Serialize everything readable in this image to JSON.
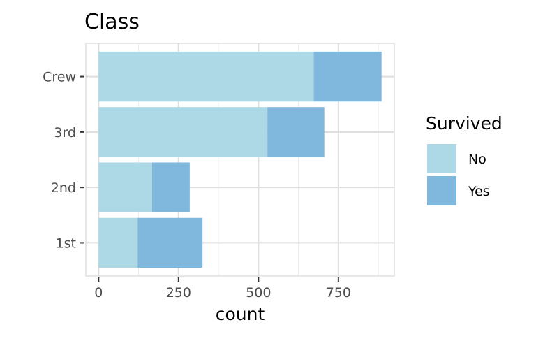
{
  "chart_data": {
    "type": "bar",
    "orientation": "horizontal",
    "stacked": true,
    "title": "Class",
    "xlabel": "count",
    "ylabel": "",
    "categories": [
      "1st",
      "2nd",
      "3rd",
      "Crew"
    ],
    "series": [
      {
        "name": "No",
        "color": "#add8e6",
        "values": [
          122,
          167,
          528,
          673
        ]
      },
      {
        "name": "Yes",
        "color": "#7fb8dc",
        "values": [
          203,
          118,
          178,
          212
        ]
      }
    ],
    "xlim": [
      -40,
      925
    ],
    "xticks": [
      0,
      250,
      500,
      750
    ],
    "xtick_labels": [
      "0",
      "250",
      "500",
      "750"
    ],
    "legend": {
      "title": "Survived",
      "position": "right",
      "entries": [
        "No",
        "Yes"
      ]
    },
    "grid": true,
    "panel_background": "#ffffff",
    "grid_color": "#dddddd"
  }
}
